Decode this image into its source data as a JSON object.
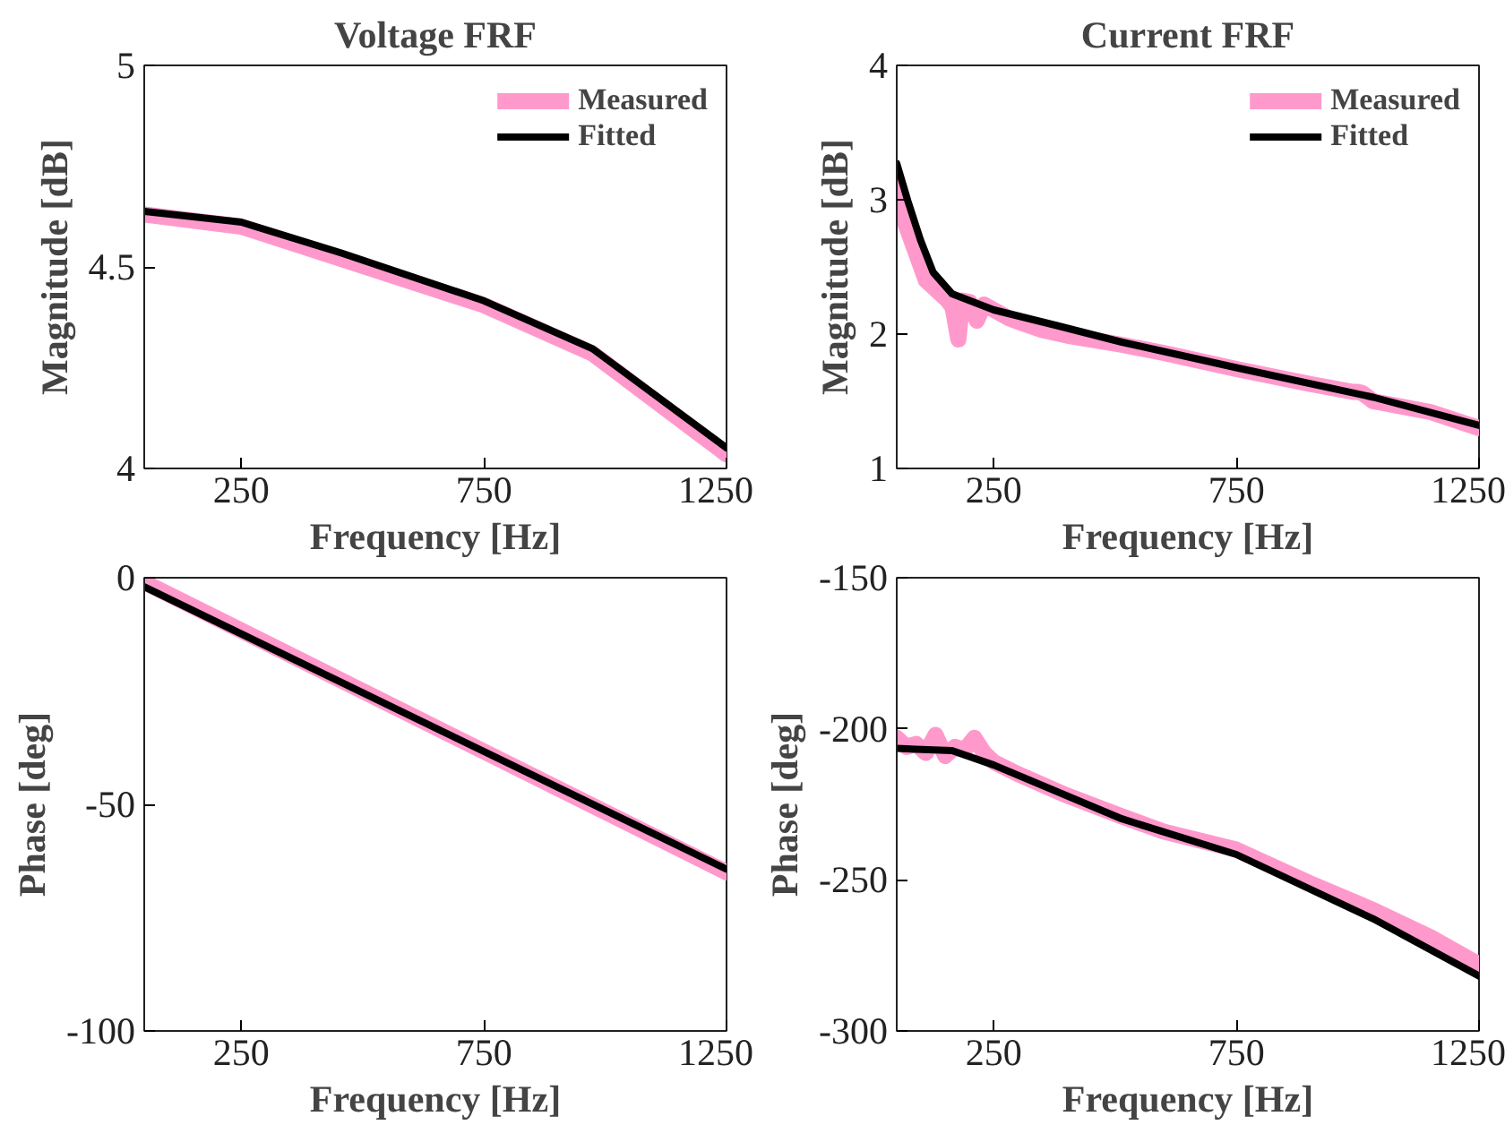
{
  "chart_data": [
    {
      "type": "line",
      "title": "Voltage FRF",
      "xlabel": "Frequency [Hz]",
      "ylabel": "Magnitude [dB]",
      "xlim": [
        50,
        1250
      ],
      "xticks": [
        250,
        750,
        1250
      ],
      "ylim": [
        4,
        5
      ],
      "yticks": [
        4,
        4.5,
        5
      ],
      "grid": false,
      "legend": "top right",
      "series": [
        {
          "name": "Measured",
          "color": "#ff99cc",
          "x": [
            50,
            250,
            455,
            750,
            974,
            1250
          ],
          "values": [
            4.63,
            4.6,
            4.52,
            4.405,
            4.285,
            4.035
          ]
        },
        {
          "name": "Fitted",
          "color": "#000000",
          "x": [
            50,
            250,
            455,
            750,
            974,
            1250
          ],
          "values": [
            4.638,
            4.611,
            4.535,
            4.416,
            4.297,
            4.051
          ]
        }
      ]
    },
    {
      "type": "line",
      "title": "Current FRF",
      "xlabel": "Frequency [Hz]",
      "ylabel": "Magnitude [dB]",
      "xlim": [
        50,
        1250
      ],
      "xticks": [
        250,
        750,
        1250
      ],
      "ylim": [
        1,
        4
      ],
      "yticks": [
        1,
        2,
        3,
        4
      ],
      "grid": false,
      "legend": "top right",
      "series": [
        {
          "name": "Measured",
          "color": "#ff99cc",
          "x": [
            50,
            65,
            80,
            95,
            110,
            125,
            140,
            155,
            165,
            177,
            185,
            200,
            215,
            230,
            250,
            280,
            310,
            350,
            400,
            450,
            514,
            600,
            750,
            900,
            990,
            1000,
            1010,
            1032,
            1150,
            1250
          ],
          "values": [
            3.1,
            2.85,
            2.7,
            2.55,
            2.4,
            2.35,
            2.3,
            2.25,
            2.2,
            1.96,
            2.25,
            2.24,
            2.1,
            2.22,
            2.18,
            2.12,
            2.08,
            2.03,
            1.99,
            1.96,
            1.92,
            1.86,
            1.74,
            1.63,
            1.57,
            1.57,
            1.56,
            1.5,
            1.42,
            1.3
          ]
        },
        {
          "name": "Fitted",
          "color": "#000000",
          "x": [
            50,
            73,
            99,
            125,
            164,
            250,
            384,
            514,
            750,
            1032,
            1250
          ],
          "values": [
            3.27,
            2.99,
            2.7,
            2.46,
            2.3,
            2.18,
            2.06,
            1.94,
            1.75,
            1.53,
            1.32
          ]
        }
      ]
    },
    {
      "type": "line",
      "xlabel": "Frequency [Hz]",
      "ylabel": "Phase [deg]",
      "xlim": [
        50,
        1250
      ],
      "xticks": [
        250,
        750,
        1250
      ],
      "ylim": [
        -100,
        0
      ],
      "yticks": [
        -100,
        -50,
        0
      ],
      "grid": false,
      "series": [
        {
          "color": "#ff99cc",
          "x": [
            50,
            1250
          ],
          "values": [
            -1,
            -65
          ]
        },
        {
          "color": "#000000",
          "x": [
            50,
            1250
          ],
          "values": [
            -2,
            -64.3
          ]
        }
      ]
    },
    {
      "type": "line",
      "xlabel": "Frequency [Hz]",
      "ylabel": "Phase [deg]",
      "xlim": [
        50,
        1250
      ],
      "xticks": [
        250,
        750,
        1250
      ],
      "ylim": [
        -300,
        -150
      ],
      "yticks": [
        -300,
        -250,
        -200,
        -150
      ],
      "grid": false,
      "series": [
        {
          "color": "#ff99cc",
          "x": [
            50,
            70,
            90,
            110,
            130,
            150,
            170,
            190,
            210,
            230,
            250,
            300,
            400,
            514,
            600,
            750,
            900,
            1032,
            1150,
            1250
          ],
          "values": [
            -203,
            -206,
            -205,
            -208,
            -202,
            -209,
            -206,
            -207,
            -203,
            -208,
            -211,
            -215,
            -222,
            -229,
            -234,
            -240,
            -251,
            -260,
            -269,
            -278
          ]
        },
        {
          "color": "#000000",
          "x": [
            50,
            164,
            250,
            514,
            750,
            1032,
            1250
          ],
          "values": [
            -206.5,
            -207.2,
            -212,
            -229.8,
            -241.6,
            -262.9,
            -281.8
          ]
        }
      ]
    }
  ]
}
